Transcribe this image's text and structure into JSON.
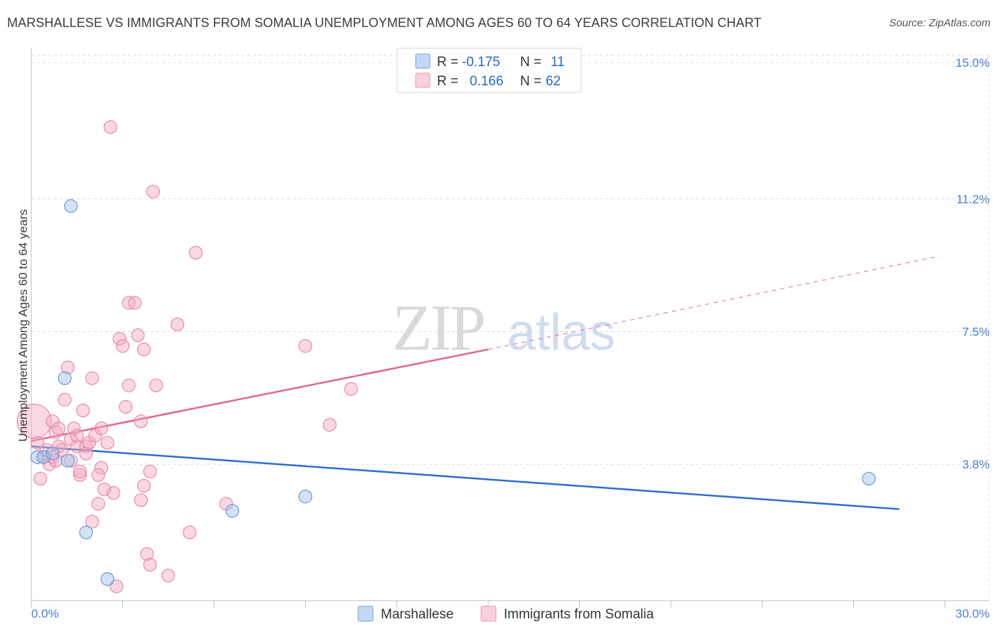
{
  "title": "MARSHALLESE VS IMMIGRANTS FROM SOMALIA UNEMPLOYMENT AMONG AGES 60 TO 64 YEARS CORRELATION CHART",
  "source": "Source: ZipAtlas.com",
  "chart_data": {
    "type": "scatter",
    "title": "MARSHALLESE VS IMMIGRANTS FROM SOMALIA UNEMPLOYMENT AMONG AGES 60 TO 64 YEARS CORRELATION CHART",
    "xlabel": "",
    "ylabel": "Unemployment Among Ages 60 to 64 years",
    "xlim": [
      0,
      30
    ],
    "ylim": [
      0,
      15
    ],
    "x_tick_labels": [
      "0.0%",
      "30.0%"
    ],
    "y_ticks": [
      3.8,
      7.5,
      11.2,
      15.0
    ],
    "y_tick_labels": [
      "3.8%",
      "7.5%",
      "11.2%",
      "15.0%"
    ],
    "legend": [
      {
        "name": "Marshallese",
        "r_label": "R =",
        "r": "-0.175",
        "n_label": "N =",
        "n": "11",
        "color": "#9ec2ee"
      },
      {
        "name": "Immigrants from Somalia",
        "r_label": "R =",
        "r": "0.166",
        "n_label": "N =",
        "n": "62",
        "color": "#f4a9c0"
      }
    ],
    "series": [
      {
        "name": "Marshallese",
        "color": "#9ec2ee",
        "stroke": "#6b9ad8",
        "points": [
          [
            0.2,
            4.0
          ],
          [
            0.4,
            4.0
          ],
          [
            0.7,
            4.1
          ],
          [
            1.2,
            3.9
          ],
          [
            1.3,
            11.0
          ],
          [
            1.1,
            6.2
          ],
          [
            1.8,
            1.9
          ],
          [
            2.5,
            0.6
          ],
          [
            6.6,
            2.5
          ],
          [
            9.0,
            2.9
          ],
          [
            27.5,
            3.4
          ]
        ],
        "trend": {
          "x0": 0,
          "y0": 4.3,
          "x1": 28.5,
          "y1": 2.55,
          "dashed_to": null,
          "color": "#2e6fcc"
        }
      },
      {
        "name": "Immigrants from Somalia",
        "color": "#f4a9c0",
        "stroke": "#e889a6",
        "points": [
          [
            0.1,
            5.0
          ],
          [
            0.2,
            4.4
          ],
          [
            0.3,
            3.4
          ],
          [
            0.4,
            4.0
          ],
          [
            0.5,
            4.2
          ],
          [
            0.6,
            3.8
          ],
          [
            0.7,
            5.0
          ],
          [
            0.7,
            4.0
          ],
          [
            0.8,
            4.7
          ],
          [
            0.9,
            4.3
          ],
          [
            0.9,
            4.8
          ],
          [
            1.0,
            4.2
          ],
          [
            1.1,
            5.6
          ],
          [
            1.2,
            6.5
          ],
          [
            1.3,
            4.5
          ],
          [
            1.3,
            3.9
          ],
          [
            1.4,
            4.8
          ],
          [
            1.5,
            4.3
          ],
          [
            1.6,
            3.5
          ],
          [
            1.6,
            3.6
          ],
          [
            1.7,
            5.3
          ],
          [
            1.8,
            4.3
          ],
          [
            1.8,
            4.1
          ],
          [
            1.9,
            4.4
          ],
          [
            2.0,
            2.2
          ],
          [
            2.0,
            6.2
          ],
          [
            2.1,
            4.6
          ],
          [
            2.2,
            2.7
          ],
          [
            2.3,
            4.8
          ],
          [
            2.3,
            3.7
          ],
          [
            2.4,
            3.1
          ],
          [
            2.5,
            4.4
          ],
          [
            2.6,
            13.2
          ],
          [
            2.7,
            3.0
          ],
          [
            2.8,
            0.4
          ],
          [
            2.9,
            7.3
          ],
          [
            3.0,
            7.1
          ],
          [
            3.1,
            5.4
          ],
          [
            3.2,
            6.0
          ],
          [
            3.2,
            8.3
          ],
          [
            3.4,
            8.3
          ],
          [
            3.5,
            7.4
          ],
          [
            3.6,
            2.8
          ],
          [
            3.6,
            5.0
          ],
          [
            3.7,
            3.2
          ],
          [
            3.7,
            7.0
          ],
          [
            3.8,
            1.3
          ],
          [
            3.9,
            1.0
          ],
          [
            3.9,
            3.6
          ],
          [
            4.0,
            11.4
          ],
          [
            4.1,
            6.0
          ],
          [
            4.5,
            0.7
          ],
          [
            4.8,
            7.7
          ],
          [
            5.2,
            1.9
          ],
          [
            5.4,
            9.7
          ],
          [
            6.4,
            2.7
          ],
          [
            9.0,
            7.1
          ],
          [
            9.8,
            4.9
          ],
          [
            10.5,
            5.9
          ],
          [
            0.8,
            3.9
          ],
          [
            1.5,
            4.6
          ],
          [
            2.2,
            3.5
          ]
        ],
        "trend": {
          "x0": 0,
          "y0": 4.45,
          "x1": 15.0,
          "y1": 7.0,
          "dashed_to": [
            29.8,
            9.6
          ],
          "color": "#e0678f"
        }
      }
    ],
    "grid": true,
    "legend_position": "top-center",
    "watermark": "ZIPatlas"
  }
}
